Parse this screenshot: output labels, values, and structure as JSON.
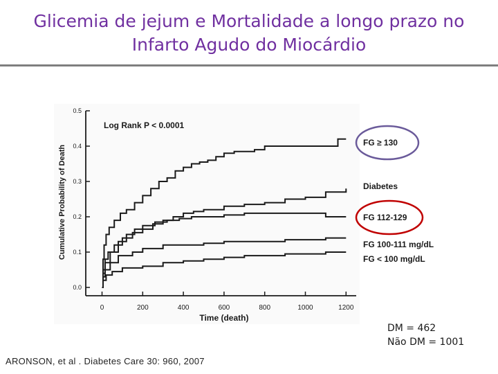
{
  "slide": {
    "title_line1": "Glicemia de jejum e Mortalidade a longo prazo no",
    "title_line2": "Infarto Agudo do Miocárdio",
    "title_color": "#7030a0",
    "stats_line1": "DM = 462",
    "stats_line2": "Não DM = 1001",
    "citation": "ARONSON, et al . Diabetes Care 30: 960, 2007"
  },
  "chart_data": {
    "type": "line",
    "xlabel": "Time (death)",
    "ylabel": "Cumulative Probability of Death",
    "annotation": "Log Rank P < 0.0001",
    "xlim": [
      -80,
      1250
    ],
    "ylim": [
      0,
      0.5
    ],
    "xticks": [
      0,
      200,
      400,
      600,
      800,
      1000,
      1200
    ],
    "xtick_labels": [
      "0",
      "200",
      "400",
      "600",
      "800",
      "1000",
      "1200"
    ],
    "yticks": [
      0,
      0.1,
      0.2,
      0.3,
      0.4,
      0.5
    ],
    "ytick_labels": [
      "0.0",
      "0.1",
      "0.2",
      "0.3",
      "0.4",
      "0.5"
    ],
    "grid": false,
    "highlight_colors": {
      "fg130": "#6a5a9a",
      "fg112": "#c00000"
    },
    "series": [
      {
        "name": "FG ≥ 130",
        "label": "FG ≥ 130",
        "highlight": "fg130",
        "x": [
          0,
          5,
          10,
          20,
          35,
          60,
          90,
          120,
          160,
          200,
          240,
          280,
          320,
          360,
          400,
          440,
          480,
          520,
          560,
          600,
          650,
          700,
          750,
          800,
          900,
          1000,
          1100,
          1160,
          1200
        ],
        "y": [
          0.0,
          0.08,
          0.12,
          0.15,
          0.17,
          0.19,
          0.21,
          0.22,
          0.24,
          0.26,
          0.28,
          0.3,
          0.31,
          0.33,
          0.34,
          0.35,
          0.355,
          0.36,
          0.37,
          0.38,
          0.385,
          0.385,
          0.39,
          0.4,
          0.4,
          0.4,
          0.4,
          0.42,
          0.42
        ]
      },
      {
        "name": "Diabetes",
        "label": "Diabetes",
        "highlight": null,
        "x": [
          0,
          5,
          15,
          30,
          60,
          100,
          150,
          200,
          250,
          300,
          350,
          400,
          450,
          500,
          600,
          700,
          800,
          900,
          1000,
          1100,
          1200
        ],
        "y": [
          0.0,
          0.05,
          0.08,
          0.1,
          0.12,
          0.14,
          0.155,
          0.165,
          0.18,
          0.19,
          0.2,
          0.21,
          0.215,
          0.22,
          0.23,
          0.235,
          0.24,
          0.25,
          0.255,
          0.27,
          0.28
        ]
      },
      {
        "name": "FG 112-129",
        "label": "FG 112-129",
        "highlight": "fg112",
        "x": [
          0,
          5,
          15,
          40,
          80,
          120,
          160,
          200,
          260,
          320,
          380,
          440,
          500,
          600,
          700,
          800,
          900,
          1000,
          1100,
          1200
        ],
        "y": [
          0.0,
          0.04,
          0.07,
          0.1,
          0.13,
          0.15,
          0.165,
          0.175,
          0.185,
          0.19,
          0.195,
          0.2,
          0.2,
          0.205,
          0.21,
          0.21,
          0.21,
          0.21,
          0.2,
          0.2
        ]
      },
      {
        "name": "FG 100-111 mg/dL",
        "label": "FG 100-111 mg/dL",
        "highlight": null,
        "x": [
          0,
          5,
          15,
          40,
          80,
          150,
          200,
          300,
          400,
          500,
          600,
          700,
          800,
          900,
          1000,
          1100,
          1200
        ],
        "y": [
          0.0,
          0.03,
          0.05,
          0.07,
          0.09,
          0.1,
          0.11,
          0.12,
          0.12,
          0.125,
          0.13,
          0.13,
          0.13,
          0.135,
          0.135,
          0.14,
          0.14
        ]
      },
      {
        "name": "FG < 100 mg/dL",
        "label": "FG < 100 mg/dL",
        "highlight": null,
        "x": [
          0,
          5,
          20,
          50,
          100,
          200,
          300,
          400,
          500,
          600,
          700,
          800,
          900,
          1000,
          1100,
          1200
        ],
        "y": [
          0.0,
          0.02,
          0.035,
          0.045,
          0.055,
          0.06,
          0.07,
          0.075,
          0.08,
          0.085,
          0.09,
          0.09,
          0.095,
          0.095,
          0.1,
          0.1
        ]
      }
    ]
  }
}
